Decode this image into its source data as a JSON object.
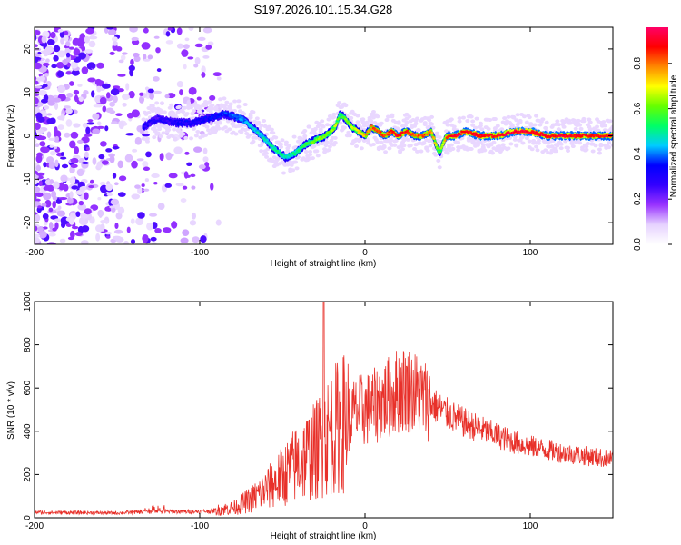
{
  "title": "S197.2026.101.15.34.G28",
  "chart_data": [
    {
      "type": "heatmap",
      "xlabel": "Height of straight line (km)",
      "ylabel": "Frequency (Hz)",
      "xlim": [
        -200,
        150
      ],
      "ylim": [
        -25,
        25
      ],
      "xticks": [
        "-200",
        "-100",
        "0",
        "100"
      ],
      "xtick_values": [
        -200,
        -100,
        0,
        100
      ],
      "yticks": [
        "20",
        "10",
        "0",
        "-10",
        "-20"
      ],
      "ytick_values": [
        20,
        10,
        0,
        -10,
        -20
      ],
      "colorbar": {
        "label": "Normalized spectral amplitude",
        "ticks": [
          "0.0",
          "0.2",
          "0.4",
          "0.6",
          "0.8"
        ],
        "tick_values": [
          0.0,
          0.2,
          0.4,
          0.6,
          0.8
        ],
        "range": [
          0,
          0.96
        ],
        "colors": [
          "#ffffff",
          "#e6d2ff",
          "#9933ff",
          "#3300ff",
          "#0000ff",
          "#00ccff",
          "#00ff66",
          "#66ff00",
          "#ffff00",
          "#ff8800",
          "#ff0000",
          "#ff0066"
        ]
      },
      "ridge": {
        "x": [
          -134,
          -125,
          -115,
          -105,
          -95,
          -85,
          -75,
          -65,
          -55,
          -48,
          -42,
          -36,
          -30,
          -24,
          -18,
          -15,
          -12,
          -8,
          -4,
          0,
          4,
          8,
          12,
          16,
          20,
          25,
          30,
          35,
          40,
          45,
          48,
          50,
          55,
          60,
          70,
          80,
          90,
          100,
          110,
          120,
          130,
          140,
          150
        ],
        "freq": [
          2,
          4,
          3,
          3,
          4,
          5,
          4,
          1,
          -3,
          -5,
          -4,
          -2,
          -1,
          0,
          2,
          5,
          4,
          2,
          1,
          0,
          2,
          1,
          0,
          1,
          0,
          1,
          0,
          0,
          1,
          -4,
          -1,
          0,
          0,
          1,
          0,
          0,
          1,
          1,
          0,
          0,
          0,
          0,
          0
        ],
        "amplitude": [
          0.28,
          0.25,
          0.3,
          0.3,
          0.32,
          0.35,
          0.4,
          0.45,
          0.5,
          0.48,
          0.5,
          0.55,
          0.6,
          0.62,
          0.65,
          0.55,
          0.6,
          0.65,
          0.7,
          0.75,
          0.8,
          0.85,
          0.82,
          0.85,
          0.88,
          0.85,
          0.8,
          0.85,
          0.8,
          0.6,
          0.7,
          0.85,
          0.9,
          0.88,
          0.9,
          0.88,
          0.92,
          0.9,
          0.88,
          0.9,
          0.88,
          0.88,
          0.88
        ]
      }
    },
    {
      "type": "line",
      "xlabel": "Height of straight line (km)",
      "ylabel": "SNR (10 * v/v)",
      "xlim": [
        -200,
        150
      ],
      "ylim": [
        0,
        1000
      ],
      "xticks": [
        "-200",
        "-100",
        "0",
        "100"
      ],
      "xtick_values": [
        -200,
        -100,
        0,
        100
      ],
      "yticks": [
        "1000",
        "800",
        "600",
        "400",
        "200",
        "0"
      ],
      "ytick_values": [
        1000,
        800,
        600,
        400,
        200,
        0
      ],
      "series": [
        {
          "name": "SNR",
          "color": "#e8312a",
          "envelope_x": [
            -200,
            -150,
            -125,
            -110,
            -95,
            -80,
            -70,
            -60,
            -50,
            -40,
            -30,
            -25,
            -20,
            -15,
            -10,
            -5,
            0,
            5,
            10,
            15,
            20,
            25,
            30,
            40,
            50,
            60,
            70,
            80,
            90,
            100,
            110,
            120,
            130,
            140,
            150
          ],
          "envelope_y": [
            25,
            22,
            30,
            28,
            30,
            45,
            80,
            130,
            190,
            260,
            310,
            360,
            400,
            430,
            460,
            490,
            500,
            510,
            540,
            560,
            590,
            600,
            580,
            530,
            480,
            440,
            410,
            380,
            350,
            330,
            315,
            300,
            290,
            280,
            270
          ],
          "spike_x": -25,
          "spike_y": 1000
        }
      ]
    }
  ]
}
